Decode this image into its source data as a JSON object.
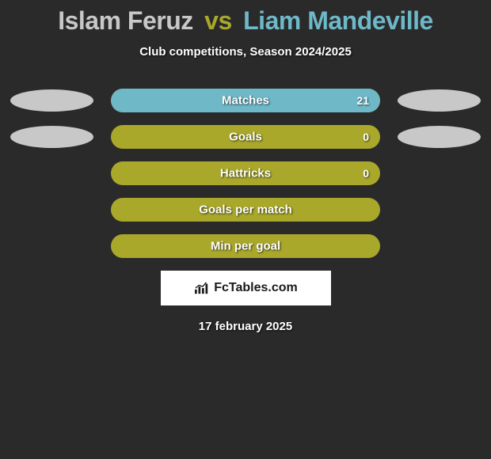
{
  "title": {
    "player1": "Islam Feruz",
    "vs": "vs",
    "player2": "Liam Mandeville",
    "player1_color": "#c8c8c8",
    "vs_color": "#a9a82b",
    "player2_color": "#6eb8c8"
  },
  "subtitle": "Club competitions, Season 2024/2025",
  "stats": [
    {
      "label": "Matches",
      "value": "21",
      "has_value": true,
      "bar_bg": "#a9a82b",
      "bar_fill_color": "#6eb8c8",
      "bar_fill_width_pct": 100,
      "bar_fill_side": "right",
      "left_ellipse": "#c8c8c8",
      "right_ellipse": "#c8c8c8",
      "show_left_ellipse": true,
      "show_right_ellipse": true
    },
    {
      "label": "Goals",
      "value": "0",
      "has_value": true,
      "bar_bg": "#a9a82b",
      "bar_fill_color": "#a9a82b",
      "bar_fill_width_pct": 0,
      "bar_fill_side": "right",
      "left_ellipse": "#c8c8c8",
      "right_ellipse": "#c8c8c8",
      "show_left_ellipse": true,
      "show_right_ellipse": true
    },
    {
      "label": "Hattricks",
      "value": "0",
      "has_value": true,
      "bar_bg": "#a9a82b",
      "bar_fill_color": "#a9a82b",
      "bar_fill_width_pct": 0,
      "bar_fill_side": "right",
      "left_ellipse": "",
      "right_ellipse": "",
      "show_left_ellipse": false,
      "show_right_ellipse": false
    },
    {
      "label": "Goals per match",
      "value": "",
      "has_value": false,
      "bar_bg": "#a9a82b",
      "bar_fill_color": "#a9a82b",
      "bar_fill_width_pct": 0,
      "bar_fill_side": "right",
      "left_ellipse": "",
      "right_ellipse": "",
      "show_left_ellipse": false,
      "show_right_ellipse": false
    },
    {
      "label": "Min per goal",
      "value": "",
      "has_value": false,
      "bar_bg": "#a9a82b",
      "bar_fill_color": "#a9a82b",
      "bar_fill_width_pct": 0,
      "bar_fill_side": "right",
      "left_ellipse": "",
      "right_ellipse": "",
      "show_left_ellipse": false,
      "show_right_ellipse": false
    }
  ],
  "brand": {
    "text": "FcTables.com",
    "icon_color": "#1a1a1a"
  },
  "date": "17 february 2025",
  "background_color": "#2a2a2a"
}
